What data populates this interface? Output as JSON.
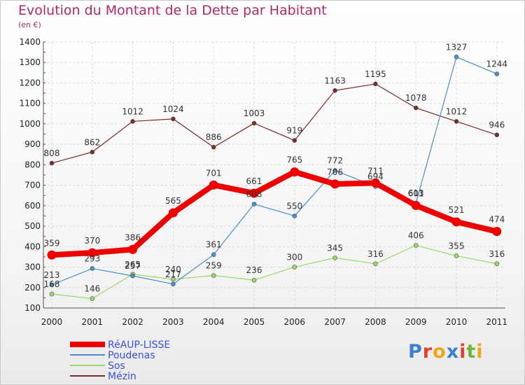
{
  "header": {
    "title": "Evolution du Montant de la Dette par Habitant",
    "subtitle": "(en €)"
  },
  "logo": {
    "letters": [
      "P",
      "r",
      "o",
      "x",
      "i",
      "t",
      "i"
    ],
    "colors": [
      "#3a7fd0",
      "#e0412e",
      "#f2a317",
      "#3a7fd0",
      "#e0412e",
      "#68b83c",
      "#f2a317"
    ]
  },
  "chart_data": {
    "type": "line",
    "title": "Evolution du Montant de la Dette par Habitant",
    "subtitle": "(en €)",
    "xlabel": "",
    "ylabel": "",
    "x": [
      "2000",
      "2001",
      "2002",
      "2003",
      "2004",
      "2005",
      "2006",
      "2007",
      "2008",
      "2009",
      "2010",
      "2011"
    ],
    "ylim": [
      100,
      1400
    ],
    "yticks": [
      100,
      200,
      300,
      400,
      500,
      600,
      700,
      800,
      900,
      1000,
      1100,
      1200,
      1300,
      1400
    ],
    "grid": true,
    "legend_position": "bottom-left",
    "series": [
      {
        "name": "RéAUP-LISSE",
        "color": "#ee0000",
        "values": [
          359,
          370,
          386,
          565,
          701,
          661,
          765,
          706,
          711,
          601,
          521,
          474
        ]
      },
      {
        "name": "Poudenas",
        "color": "#4a8fc9",
        "values": [
          213,
          293,
          257,
          217,
          361,
          608,
          550,
          772,
          694,
          613,
          1327,
          1244
        ]
      },
      {
        "name": "Sos",
        "color": "#9ad86a",
        "values": [
          168,
          146,
          265,
          240,
          259,
          236,
          300,
          345,
          316,
          406,
          355,
          316
        ]
      },
      {
        "name": "Mézin",
        "color": "#7a2a2a",
        "values": [
          808,
          862,
          1012,
          1024,
          886,
          1003,
          919,
          1163,
          1195,
          1078,
          1012,
          946
        ]
      }
    ]
  }
}
